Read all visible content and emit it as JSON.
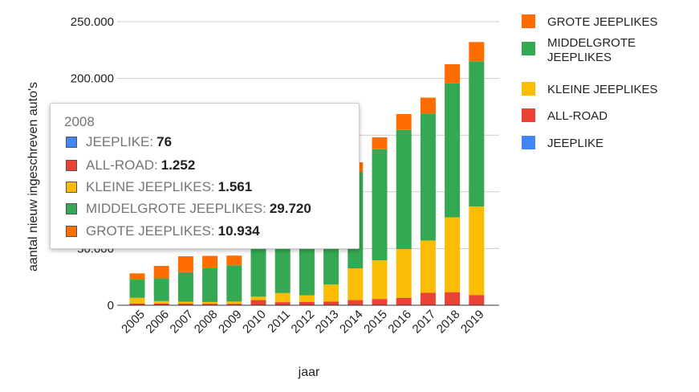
{
  "chart_data": {
    "type": "bar",
    "stacked": true,
    "title": "",
    "xlabel": "jaar",
    "ylabel": "aantal nieuw ingeschreven auto's",
    "ylim": [
      0,
      250000
    ],
    "yticks": [
      {
        "value": 0,
        "label": "0"
      },
      {
        "value": 50000,
        "label": "50.000"
      },
      {
        "value": 100000,
        "label": "100.000"
      },
      {
        "value": 150000,
        "label": "150.000"
      },
      {
        "value": 200000,
        "label": "200.000"
      },
      {
        "value": 250000,
        "label": "250.000"
      }
    ],
    "grid": true,
    "legend_position": "right",
    "categories": [
      "2005",
      "2006",
      "2007",
      "2008",
      "2009",
      "2010",
      "2011",
      "2012",
      "2013",
      "2014",
      "2015",
      "2016",
      "2017",
      "2018",
      "2019"
    ],
    "series": [
      {
        "name": "JEEPLIKE",
        "color": "#4285f4",
        "values": [
          100,
          90,
          80,
          76,
          70,
          60,
          50,
          50,
          50,
          50,
          50,
          50,
          50,
          50,
          50
        ]
      },
      {
        "name": "ALL-ROAD",
        "color": "#ea4335",
        "values": [
          1500,
          1400,
          1300,
          1252,
          1200,
          4500,
          2700,
          2800,
          3200,
          4500,
          5500,
          6500,
          11000,
          11500,
          9000
        ]
      },
      {
        "name": "KLEINE JEEPLIKES",
        "color": "#fbbc04",
        "values": [
          5000,
          2200,
          1800,
          1561,
          2000,
          3000,
          8000,
          6000,
          15000,
          28000,
          34000,
          43000,
          46000,
          66000,
          78000
        ]
      },
      {
        "name": "MIDDELGROTE JEEPLIKES",
        "color": "#34a853",
        "values": [
          16000,
          20000,
          26000,
          29720,
          32000,
          43000,
          43000,
          56000,
          80000,
          85000,
          98000,
          105000,
          112000,
          118000,
          128000
        ]
      },
      {
        "name": "GROTE JEEPLIKES",
        "color": "#ff6d01",
        "values": [
          5500,
          11000,
          14000,
          10934,
          8500,
          10000,
          10000,
          11000,
          9000,
          8500,
          10500,
          14000,
          14000,
          17000,
          17000
        ]
      }
    ],
    "legend_order": [
      "GROTE JEEPLIKES",
      "MIDDELGROTE JEEPLIKES",
      "KLEINE JEEPLIKES",
      "ALL-ROAD",
      "JEEPLIKE"
    ]
  },
  "tooltip": {
    "title": "2008",
    "rows": [
      {
        "name": "JEEPLIKE",
        "value": "76",
        "color": "#4285f4"
      },
      {
        "name": "ALL-ROAD",
        "value": "1.252",
        "color": "#ea4335"
      },
      {
        "name": "KLEINE JEEPLIKES",
        "value": "1.561",
        "color": "#fbbc04"
      },
      {
        "name": "MIDDELGROTE JEEPLIKES",
        "value": "29.720",
        "color": "#34a853"
      },
      {
        "name": "GROTE JEEPLIKES",
        "value": "10.934",
        "color": "#ff6d01"
      }
    ]
  }
}
